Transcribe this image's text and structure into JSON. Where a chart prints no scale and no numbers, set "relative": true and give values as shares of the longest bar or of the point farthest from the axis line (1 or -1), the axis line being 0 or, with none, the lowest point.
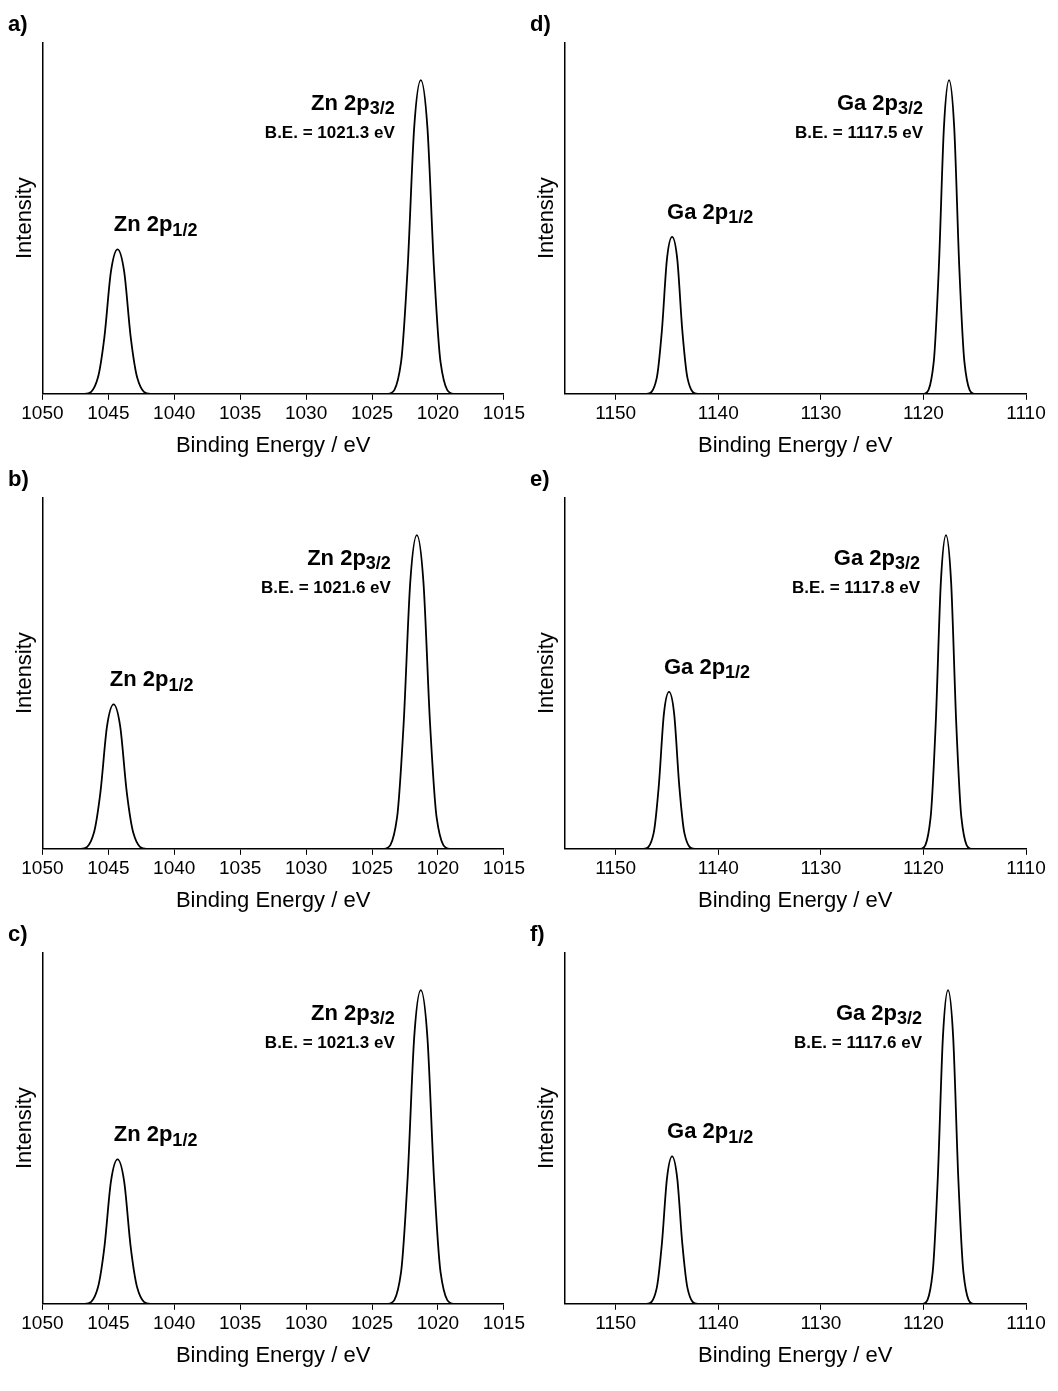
{
  "chart_data": [
    {
      "type": "line",
      "title": "a)",
      "xlabel": "Binding Energy / eV",
      "ylabel": "Intensity",
      "relative": true,
      "tick_labels": "x",
      "grid": false,
      "legend": false,
      "marker": "none",
      "line_style": "solid",
      "color": "#000000",
      "xlim": [
        1050,
        1015
      ],
      "xticks": [
        1050,
        1045,
        1040,
        1035,
        1030,
        1025,
        1020,
        1015
      ],
      "x": [
        1050,
        1046.8,
        1045.8,
        1045.3,
        1044.8,
        1044.3,
        1043.8,
        1043.3,
        1042.8,
        1041.8,
        1023.8,
        1022.8,
        1022.3,
        1021.8,
        1021.3,
        1020.8,
        1020.3,
        1019.8,
        1018.8,
        1016
      ],
      "values": [
        0,
        0,
        0.05,
        0.18,
        0.39,
        0.46,
        0.39,
        0.18,
        0.05,
        0,
        0,
        0.1,
        0.4,
        0.85,
        1,
        0.85,
        0.4,
        0.1,
        0,
        0
      ],
      "annotations": [
        {
          "text": "Zn 2p$_{1/2}$",
          "x": 1044.3,
          "y": 0.46
        },
        {
          "text": "Zn 2p$_{3/2}$",
          "x": 1021.3,
          "y": 1
        },
        {
          "text": "B.E. = 1021.3 eV",
          "x": 1021.3,
          "y": 1
        }
      ]
    },
    {
      "type": "line",
      "title": "b)",
      "xlabel": "Binding Energy / eV",
      "ylabel": "Intensity",
      "relative": true,
      "tick_labels": "x",
      "grid": false,
      "legend": false,
      "marker": "none",
      "line_style": "solid",
      "color": "#000000",
      "xlim": [
        1050,
        1015
      ],
      "xticks": [
        1050,
        1045,
        1040,
        1035,
        1030,
        1025,
        1020,
        1015
      ],
      "x": [
        1050,
        1047.1,
        1046.1,
        1045.6,
        1045.1,
        1044.6,
        1044.1,
        1043.6,
        1043.1,
        1042.1,
        1024.1,
        1023.1,
        1022.6,
        1022.1,
        1021.6,
        1021.1,
        1020.6,
        1020.1,
        1019.1,
        1016
      ],
      "values": [
        0,
        0,
        0.05,
        0.18,
        0.39,
        0.46,
        0.39,
        0.18,
        0.05,
        0,
        0,
        0.1,
        0.4,
        0.85,
        1,
        0.85,
        0.4,
        0.1,
        0,
        0
      ],
      "annotations": [
        {
          "text": "Zn 2p$_{1/2}$",
          "x": 1044.6,
          "y": 0.46
        },
        {
          "text": "Zn 2p$_{3/2}$",
          "x": 1021.6,
          "y": 1
        },
        {
          "text": "B.E. = 1021.6 eV",
          "x": 1021.6,
          "y": 1
        }
      ]
    },
    {
      "type": "line",
      "title": "c)",
      "xlabel": "Binding Energy / eV",
      "ylabel": "Intensity",
      "relative": true,
      "tick_labels": "x",
      "grid": false,
      "legend": false,
      "marker": "none",
      "line_style": "solid",
      "color": "#000000",
      "xlim": [
        1050,
        1015
      ],
      "xticks": [
        1050,
        1045,
        1040,
        1035,
        1030,
        1025,
        1020,
        1015
      ],
      "x": [
        1050,
        1046.8,
        1045.8,
        1045.3,
        1044.8,
        1044.3,
        1043.8,
        1043.3,
        1042.8,
        1041.8,
        1023.8,
        1022.8,
        1022.3,
        1021.8,
        1021.3,
        1020.8,
        1020.3,
        1019.8,
        1018.8,
        1016
      ],
      "values": [
        0,
        0,
        0.05,
        0.18,
        0.39,
        0.46,
        0.39,
        0.18,
        0.05,
        0,
        0,
        0.1,
        0.4,
        0.85,
        1,
        0.85,
        0.4,
        0.1,
        0,
        0
      ],
      "annotations": [
        {
          "text": "Zn 2p$_{1/2}$",
          "x": 1044.3,
          "y": 0.46
        },
        {
          "text": "Zn 2p$_{3/2}$",
          "x": 1021.3,
          "y": 1
        },
        {
          "text": "B.E. = 1021.3 eV",
          "x": 1021.3,
          "y": 1
        }
      ]
    },
    {
      "type": "line",
      "title": "d)",
      "xlabel": "Binding Energy / eV",
      "ylabel": "Intensity",
      "relative": true,
      "tick_labels": "x",
      "grid": false,
      "legend": false,
      "marker": "none",
      "line_style": "solid",
      "color": "#000000",
      "xlim": [
        1155,
        1110
      ],
      "xticks": [
        1150,
        1140,
        1130,
        1120,
        1110
      ],
      "x": [
        1155,
        1147,
        1146,
        1145.5,
        1145,
        1144.5,
        1144,
        1143.5,
        1143,
        1142,
        1120,
        1119,
        1118.5,
        1118,
        1117.5,
        1117,
        1116.5,
        1116,
        1115,
        1111
      ],
      "values": [
        0,
        0,
        0.05,
        0.2,
        0.43,
        0.5,
        0.43,
        0.2,
        0.05,
        0,
        0,
        0.1,
        0.4,
        0.85,
        1,
        0.85,
        0.4,
        0.1,
        0,
        0
      ],
      "annotations": [
        {
          "text": "Ga 2p$_{1/2}$",
          "x": 1144.5,
          "y": 0.5
        },
        {
          "text": "Ga 2p$_{3/2}$",
          "x": 1117.5,
          "y": 1
        },
        {
          "text": "B.E. = 1117.5 eV",
          "x": 1117.5,
          "y": 1
        }
      ]
    },
    {
      "type": "line",
      "title": "e)",
      "xlabel": "Binding Energy / eV",
      "ylabel": "Intensity",
      "relative": true,
      "tick_labels": "x",
      "grid": false,
      "legend": false,
      "marker": "none",
      "line_style": "solid",
      "color": "#000000",
      "xlim": [
        1155,
        1110
      ],
      "xticks": [
        1150,
        1140,
        1130,
        1120,
        1110
      ],
      "x": [
        1155,
        1147.3,
        1146.3,
        1145.8,
        1145.3,
        1144.8,
        1144.3,
        1143.8,
        1143.3,
        1142.3,
        1120.3,
        1119.3,
        1118.8,
        1118.3,
        1117.8,
        1117.3,
        1116.8,
        1116.3,
        1115.3,
        1111
      ],
      "values": [
        0,
        0,
        0.05,
        0.2,
        0.43,
        0.5,
        0.43,
        0.2,
        0.05,
        0,
        0,
        0.1,
        0.4,
        0.85,
        1,
        0.85,
        0.4,
        0.1,
        0,
        0
      ],
      "annotations": [
        {
          "text": "Ga 2p$_{1/2}$",
          "x": 1144.8,
          "y": 0.5
        },
        {
          "text": "Ga 2p$_{3/2}$",
          "x": 1117.8,
          "y": 1
        },
        {
          "text": "B.E. = 1117.8 eV",
          "x": 1117.8,
          "y": 1
        }
      ]
    },
    {
      "type": "line",
      "title": "f)",
      "xlabel": "Binding Energy / eV",
      "ylabel": "Intensity",
      "relative": true,
      "tick_labels": "x",
      "grid": false,
      "legend": false,
      "marker": "none",
      "line_style": "solid",
      "color": "#000000",
      "xlim": [
        1155,
        1110
      ],
      "xticks": [
        1150,
        1140,
        1130,
        1120,
        1110
      ],
      "x": [
        1155,
        1147,
        1146,
        1145.5,
        1145,
        1144.5,
        1144,
        1143.5,
        1143,
        1142,
        1120.1,
        1119.1,
        1118.6,
        1118.1,
        1117.6,
        1117.1,
        1116.6,
        1116.1,
        1115.1,
        1111
      ],
      "values": [
        0,
        0,
        0.05,
        0.19,
        0.4,
        0.47,
        0.4,
        0.19,
        0.05,
        0,
        0,
        0.1,
        0.4,
        0.85,
        1,
        0.85,
        0.4,
        0.1,
        0,
        0
      ],
      "annotations": [
        {
          "text": "Ga 2p$_{1/2}$",
          "x": 1144.5,
          "y": 0.47
        },
        {
          "text": "Ga 2p$_{3/2}$",
          "x": 1117.6,
          "y": 1
        },
        {
          "text": "B.E. = 1117.6 eV",
          "x": 1117.6,
          "y": 1
        }
      ]
    }
  ]
}
